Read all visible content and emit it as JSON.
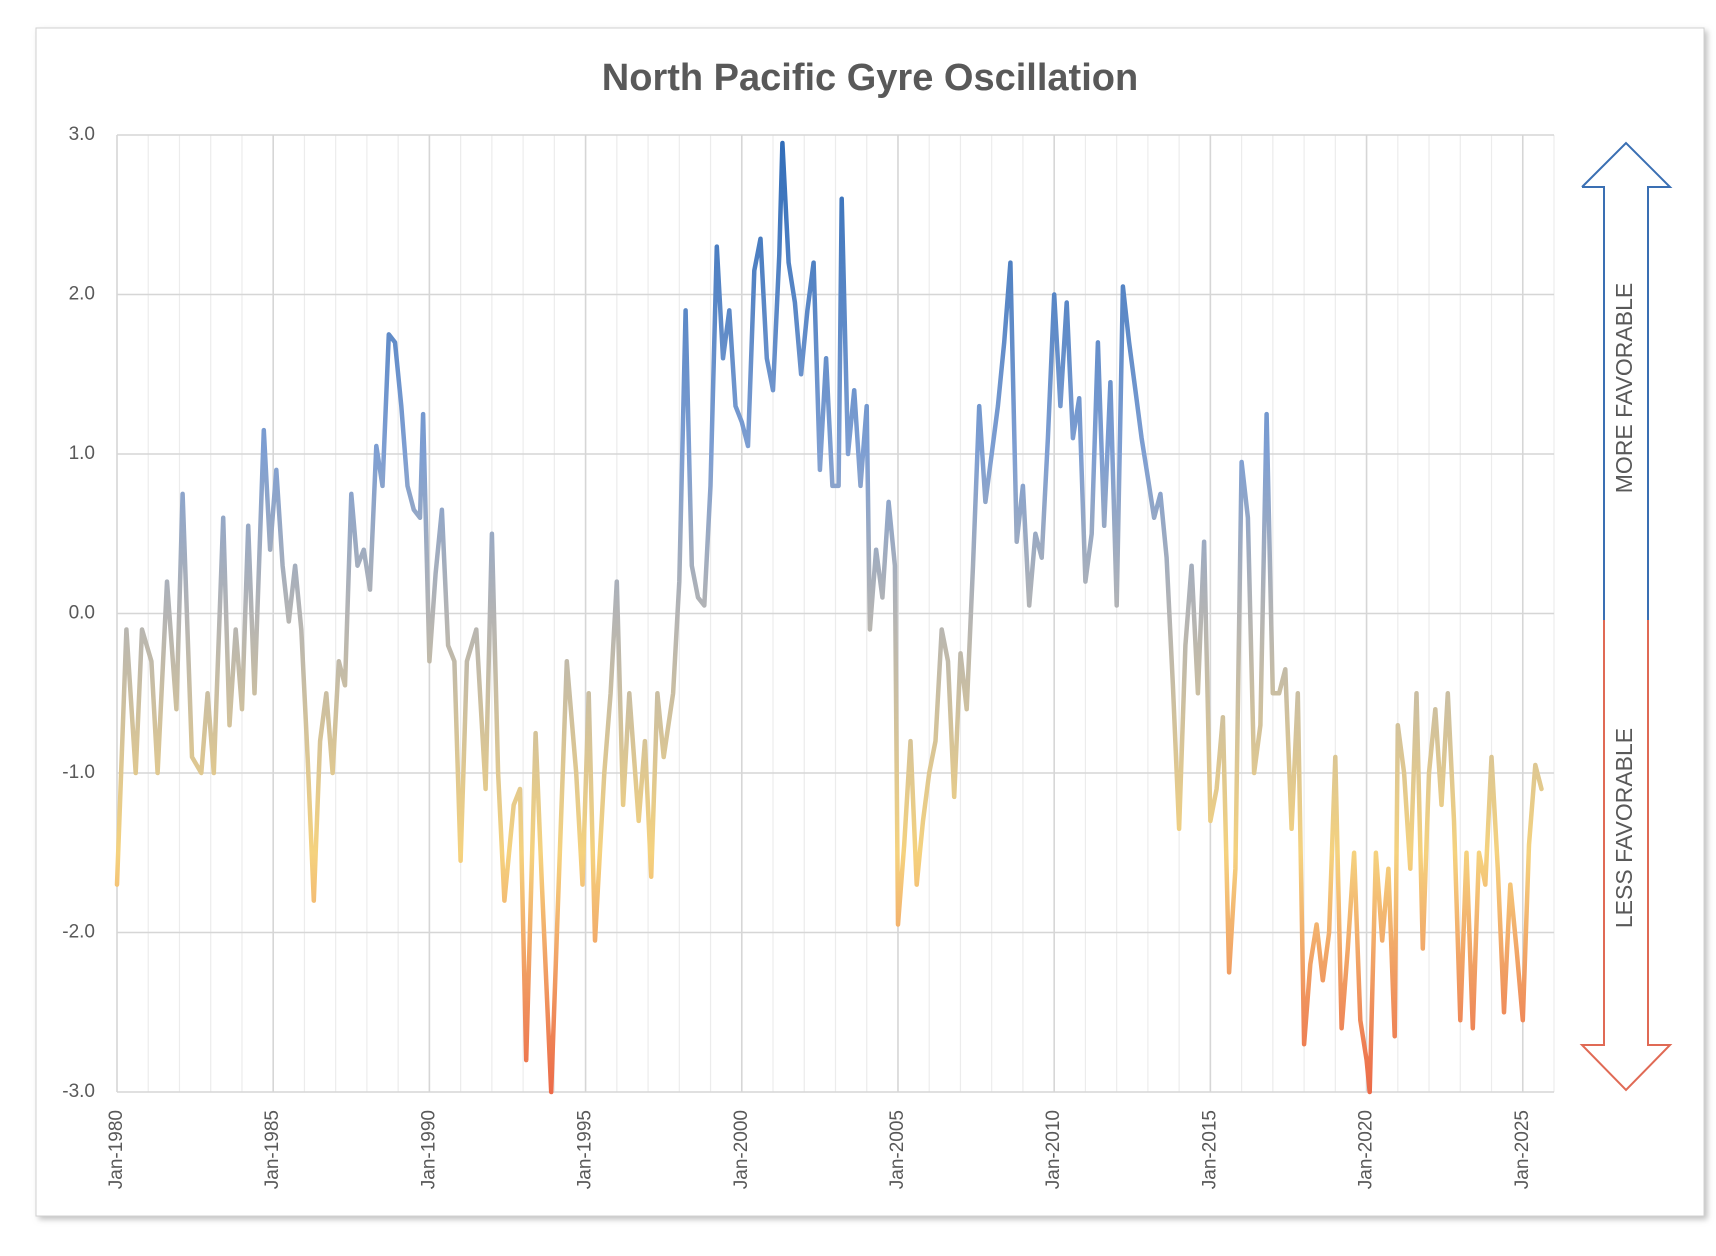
{
  "chart_data": {
    "type": "line",
    "title": "North Pacific Gyre Oscillation",
    "annotations": [
      "MORE FAVORABLE",
      "LESS FAVORABLE"
    ],
    "xlim": [
      1980,
      2026
    ],
    "xticks": [
      {
        "value": 1980,
        "label": "Jan-1980"
      },
      {
        "value": 1985,
        "label": "Jan-1985"
      },
      {
        "value": 1990,
        "label": "Jan-1990"
      },
      {
        "value": 1995,
        "label": "Jan-1995"
      },
      {
        "value": 2000,
        "label": "Jan-2000"
      },
      {
        "value": 2005,
        "label": "Jan-2005"
      },
      {
        "value": 2010,
        "label": "Jan-2010"
      },
      {
        "value": 2015,
        "label": "Jan-2015"
      },
      {
        "value": 2020,
        "label": "Jan-2020"
      },
      {
        "value": 2025,
        "label": "Jan-2025"
      }
    ],
    "xgrid_minor": [
      1981,
      1982,
      1983,
      1984,
      1986,
      1987,
      1988,
      1989,
      1991,
      1992,
      1993,
      1994,
      1996,
      1997,
      1998,
      1999,
      2001,
      2002,
      2003,
      2004,
      2006,
      2007,
      2008,
      2009,
      2011,
      2012,
      2013,
      2014,
      2016,
      2017,
      2018,
      2019,
      2021,
      2022,
      2023,
      2024,
      2026
    ],
    "ylim": [
      -3,
      3
    ],
    "yticks": [
      {
        "value": 3,
        "label": "3.0"
      },
      {
        "value": 2,
        "label": "2.0"
      },
      {
        "value": 1,
        "label": "1.0"
      },
      {
        "value": 0,
        "label": "0.0"
      },
      {
        "value": -1,
        "label": "-1.0"
      },
      {
        "value": -2,
        "label": "-2.0"
      },
      {
        "value": -3,
        "label": "-3.0"
      }
    ],
    "grid": true,
    "color_scale": [
      {
        "value": 3,
        "color": "#2f6cb8"
      },
      {
        "value": 1,
        "color": "#7f9fd2"
      },
      {
        "value": 0,
        "color": "#b4b4b4"
      },
      {
        "value": -1.5,
        "color": "#f5d27e"
      },
      {
        "value": -3,
        "color": "#ec6a48"
      }
    ],
    "x": [
      1980.0,
      1980.3,
      1980.6,
      1980.8,
      1981.1,
      1981.3,
      1981.6,
      1981.9,
      1982.1,
      1982.4,
      1982.7,
      1982.9,
      1983.1,
      1983.4,
      1983.6,
      1983.8,
      1984.0,
      1984.2,
      1984.4,
      1984.7,
      1984.9,
      1985.1,
      1985.3,
      1985.5,
      1985.7,
      1985.9,
      1986.1,
      1986.3,
      1986.5,
      1986.7,
      1986.9,
      1987.1,
      1987.3,
      1987.5,
      1987.7,
      1987.9,
      1988.1,
      1988.3,
      1988.5,
      1988.7,
      1988.9,
      1989.1,
      1989.3,
      1989.5,
      1989.7,
      1989.8,
      1990.0,
      1990.2,
      1990.4,
      1990.6,
      1990.8,
      1991.0,
      1991.2,
      1991.5,
      1991.8,
      1992.0,
      1992.2,
      1992.4,
      1992.7,
      1992.9,
      1993.1,
      1993.4,
      1993.6,
      1993.9,
      1994.1,
      1994.4,
      1994.7,
      1994.9,
      1995.1,
      1995.3,
      1995.6,
      1995.8,
      1996.0,
      1996.2,
      1996.4,
      1996.7,
      1996.9,
      1997.1,
      1997.3,
      1997.5,
      1997.8,
      1998.0,
      1998.2,
      1998.4,
      1998.6,
      1998.8,
      1999.0,
      1999.2,
      1999.4,
      1999.6,
      1999.8,
      2000.0,
      2000.2,
      2000.4,
      2000.6,
      2000.8,
      2001.0,
      2001.2,
      2001.3,
      2001.5,
      2001.7,
      2001.9,
      2002.1,
      2002.3,
      2002.5,
      2002.7,
      2002.9,
      2003.1,
      2003.2,
      2003.4,
      2003.6,
      2003.8,
      2004.0,
      2004.1,
      2004.3,
      2004.5,
      2004.7,
      2004.9,
      2005.0,
      2005.2,
      2005.4,
      2005.6,
      2005.8,
      2006.0,
      2006.2,
      2006.4,
      2006.6,
      2006.8,
      2007.0,
      2007.2,
      2007.4,
      2007.6,
      2007.8,
      2008.0,
      2008.2,
      2008.4,
      2008.6,
      2008.8,
      2009.0,
      2009.2,
      2009.4,
      2009.6,
      2009.8,
      2010.0,
      2010.2,
      2010.4,
      2010.6,
      2010.8,
      2011.0,
      2011.2,
      2011.4,
      2011.6,
      2011.8,
      2012.0,
      2012.2,
      2012.4,
      2012.6,
      2012.8,
      2013.0,
      2013.2,
      2013.4,
      2013.6,
      2013.8,
      2014.0,
      2014.2,
      2014.4,
      2014.6,
      2014.8,
      2015.0,
      2015.2,
      2015.4,
      2015.6,
      2015.8,
      2016.0,
      2016.2,
      2016.4,
      2016.6,
      2016.8,
      2017.0,
      2017.2,
      2017.4,
      2017.6,
      2017.8,
      2018.0,
      2018.2,
      2018.4,
      2018.6,
      2018.8,
      2019.0,
      2019.2,
      2019.4,
      2019.6,
      2019.8,
      2020.0,
      2020.1,
      2020.3,
      2020.5,
      2020.7,
      2020.9,
      2021.0,
      2021.2,
      2021.4,
      2021.6,
      2021.8,
      2022.0,
      2022.2,
      2022.4,
      2022.6,
      2022.8,
      2023.0,
      2023.2,
      2023.4,
      2023.6,
      2023.8,
      2024.0,
      2024.2,
      2024.4,
      2024.6,
      2024.8,
      2025.0,
      2025.2,
      2025.4,
      2025.6
    ],
    "values": [
      -1.7,
      -0.1,
      -1.0,
      -0.1,
      -0.3,
      -1.0,
      0.2,
      -0.6,
      0.75,
      -0.9,
      -1.0,
      -0.5,
      -1.0,
      0.6,
      -0.7,
      -0.1,
      -0.6,
      0.55,
      -0.5,
      1.15,
      0.4,
      0.9,
      0.3,
      -0.05,
      0.3,
      -0.1,
      -0.9,
      -1.8,
      -0.8,
      -0.5,
      -1.0,
      -0.3,
      -0.45,
      0.75,
      0.3,
      0.4,
      0.15,
      1.05,
      0.8,
      1.75,
      1.7,
      1.3,
      0.8,
      0.65,
      0.6,
      1.25,
      -0.3,
      0.25,
      0.65,
      -0.2,
      -0.3,
      -1.55,
      -0.3,
      -0.1,
      -1.1,
      0.5,
      -1.0,
      -1.8,
      -1.2,
      -1.1,
      -2.8,
      -0.75,
      -1.7,
      -3.0,
      -1.9,
      -0.3,
      -1.0,
      -1.7,
      -0.5,
      -2.05,
      -1.0,
      -0.5,
      0.2,
      -1.2,
      -0.5,
      -1.3,
      -0.8,
      -1.65,
      -0.5,
      -0.9,
      -0.5,
      0.2,
      1.9,
      0.3,
      0.1,
      0.05,
      0.8,
      2.3,
      1.6,
      1.9,
      1.3,
      1.2,
      1.05,
      2.15,
      2.35,
      1.6,
      1.4,
      2.25,
      2.95,
      2.2,
      1.95,
      1.5,
      1.9,
      2.2,
      0.9,
      1.6,
      0.8,
      0.8,
      2.6,
      1.0,
      1.4,
      0.8,
      1.3,
      -0.1,
      0.4,
      0.1,
      0.7,
      0.3,
      -1.95,
      -1.45,
      -0.8,
      -1.7,
      -1.3,
      -1.0,
      -0.8,
      -0.1,
      -0.3,
      -1.15,
      -0.25,
      -0.6,
      0.3,
      1.3,
      0.7,
      1.0,
      1.3,
      1.7,
      2.2,
      0.45,
      0.8,
      0.05,
      0.5,
      0.35,
      1.1,
      2.0,
      1.3,
      1.95,
      1.1,
      1.35,
      0.2,
      0.5,
      1.7,
      0.55,
      1.45,
      0.05,
      2.05,
      1.7,
      1.4,
      1.1,
      0.85,
      0.6,
      0.75,
      0.35,
      -0.45,
      -1.35,
      -0.2,
      0.3,
      -0.5,
      0.45,
      -1.3,
      -1.1,
      -0.65,
      -2.25,
      -1.6,
      0.95,
      0.6,
      -1.0,
      -0.7,
      1.25,
      -0.5,
      -0.5,
      -0.35,
      -1.35,
      -0.5,
      -2.7,
      -2.2,
      -1.95,
      -2.3,
      -2.0,
      -0.9,
      -2.6,
      -2.1,
      -1.5,
      -2.55,
      -2.8,
      -3.0,
      -1.5,
      -2.05,
      -1.6,
      -2.65,
      -0.7,
      -1.0,
      -1.6,
      -0.5,
      -2.1,
      -1.0,
      -0.6,
      -1.2,
      -0.5,
      -1.3,
      -2.55,
      -1.5,
      -2.6,
      -1.5,
      -1.7,
      -0.9,
      -1.6,
      -2.5,
      -1.7,
      -2.1,
      -2.55,
      -1.45,
      -0.95,
      -1.1
    ]
  }
}
